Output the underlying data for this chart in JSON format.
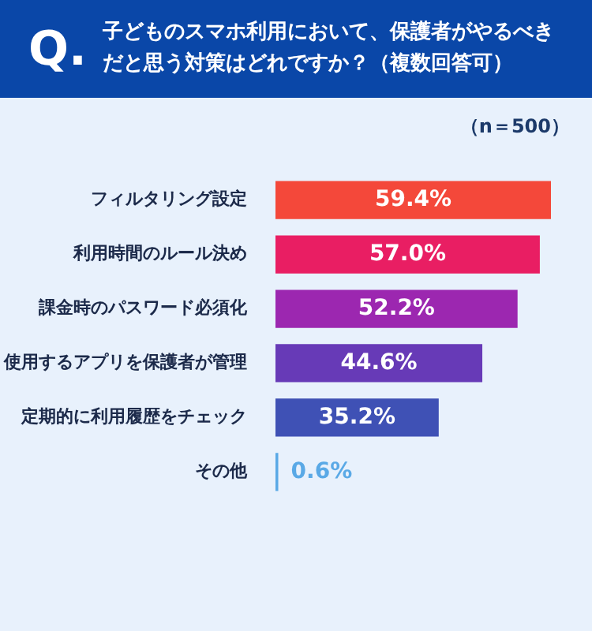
{
  "chart_data": {
    "type": "bar",
    "orientation": "horizontal",
    "title": "子どものスマホ利用において、保護者がやるべきだと思う対策はどれですか？（複数回答可）",
    "annotations": [
      "Q.",
      "（n＝500）"
    ],
    "categories": [
      "フィルタリング設定",
      "利用時間のルール決め",
      "課金時のパスワード必須化",
      "使用するアプリを保護者が管理",
      "定期的に利用履歴をチェック",
      "その他"
    ],
    "values": [
      59.4,
      57.0,
      52.2,
      44.6,
      35.2,
      0.6
    ],
    "colors": [
      "#f4483a",
      "#e91e63",
      "#9c27b0",
      "#673ab7",
      "#3f51b5",
      "#5aa9e6"
    ],
    "value_labels": [
      "59.4%",
      "57.0%",
      "52.2%",
      "44.6%",
      "35.2%",
      "0.6%"
    ]
  }
}
